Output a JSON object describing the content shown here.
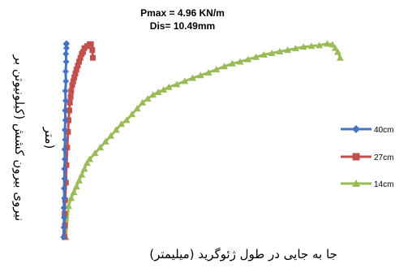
{
  "chart_data": {
    "type": "line",
    "title": "Pmax = 4.96  KN/m",
    "subtitle": "Dis= 10.49mm",
    "xlabel": "جا به جایی در طول ژئوگرید (میلیمتر)",
    "ylabel_lines": [
      "نیروی بیرون کشش (کیلونیوتن بر",
      "متر)"
    ],
    "legend_position": "right",
    "grid": false,
    "xlim": [
      0,
      11
    ],
    "ylim": [
      0,
      5
    ],
    "series": [
      {
        "name": "40cm",
        "color": "#4472C4",
        "marker": "diamond",
        "x": [
          0.01,
          0.02,
          0.03,
          0.02,
          0.04,
          0.03,
          0.05,
          0.04,
          0.06,
          0.05,
          0.07,
          0.06,
          0.08,
          0.07,
          0.09,
          0.08,
          0.1,
          0.09,
          0.11,
          0.1,
          0.12,
          0.11,
          0.12
        ],
        "y": [
          0.0,
          0.25,
          0.5,
          0.75,
          1.0,
          1.25,
          1.5,
          1.75,
          2.0,
          2.25,
          2.5,
          2.75,
          3.0,
          3.25,
          3.5,
          3.75,
          4.0,
          4.25,
          4.5,
          4.7,
          4.85,
          4.95,
          4.97
        ]
      },
      {
        "name": "27cm",
        "color": "#C0504D",
        "marker": "square",
        "x": [
          0.05,
          0.06,
          0.05,
          0.07,
          0.1,
          0.12,
          0.15,
          0.18,
          0.2,
          0.23,
          0.25,
          0.28,
          0.3,
          0.34,
          0.38,
          0.42,
          0.46,
          0.5,
          0.55,
          0.6,
          0.65,
          0.7,
          0.75,
          0.8,
          0.9,
          1.0,
          1.05,
          1.1,
          1.12
        ],
        "y": [
          0.0,
          0.3,
          0.6,
          0.95,
          1.4,
          1.85,
          2.3,
          2.7,
          3.0,
          3.25,
          3.45,
          3.6,
          3.75,
          3.9,
          4.0,
          4.1,
          4.2,
          4.3,
          4.4,
          4.5,
          4.6,
          4.7,
          4.75,
          4.85,
          4.9,
          4.95,
          4.95,
          4.8,
          4.6
        ]
      },
      {
        "name": "14cm",
        "color": "#9BBB59",
        "marker": "triangle",
        "x": [
          0.1,
          0.2,
          0.3,
          0.4,
          0.5,
          0.6,
          0.7,
          0.8,
          0.9,
          1.0,
          1.2,
          1.4,
          1.6,
          1.8,
          2.0,
          2.2,
          2.4,
          2.6,
          2.8,
          3.0,
          3.2,
          3.4,
          3.6,
          3.8,
          4.0,
          4.3,
          4.6,
          4.9,
          5.2,
          5.5,
          5.8,
          6.1,
          6.4,
          6.7,
          7.0,
          7.3,
          7.6,
          7.9,
          8.2,
          8.5,
          8.8,
          9.1,
          9.4,
          9.7,
          10.0,
          10.2,
          10.3,
          10.4,
          10.49
        ],
        "y": [
          0.0,
          0.8,
          1.0,
          1.15,
          1.3,
          1.45,
          1.6,
          1.75,
          1.9,
          2.0,
          2.15,
          2.3,
          2.45,
          2.6,
          2.75,
          2.9,
          3.0,
          3.15,
          3.3,
          3.45,
          3.55,
          3.65,
          3.72,
          3.78,
          3.85,
          3.92,
          4.0,
          4.08,
          4.15,
          4.22,
          4.3,
          4.38,
          4.45,
          4.5,
          4.56,
          4.62,
          4.68,
          4.72,
          4.76,
          4.8,
          4.84,
          4.88,
          4.9,
          4.92,
          4.96,
          4.94,
          4.85,
          4.75,
          4.6
        ]
      }
    ]
  }
}
